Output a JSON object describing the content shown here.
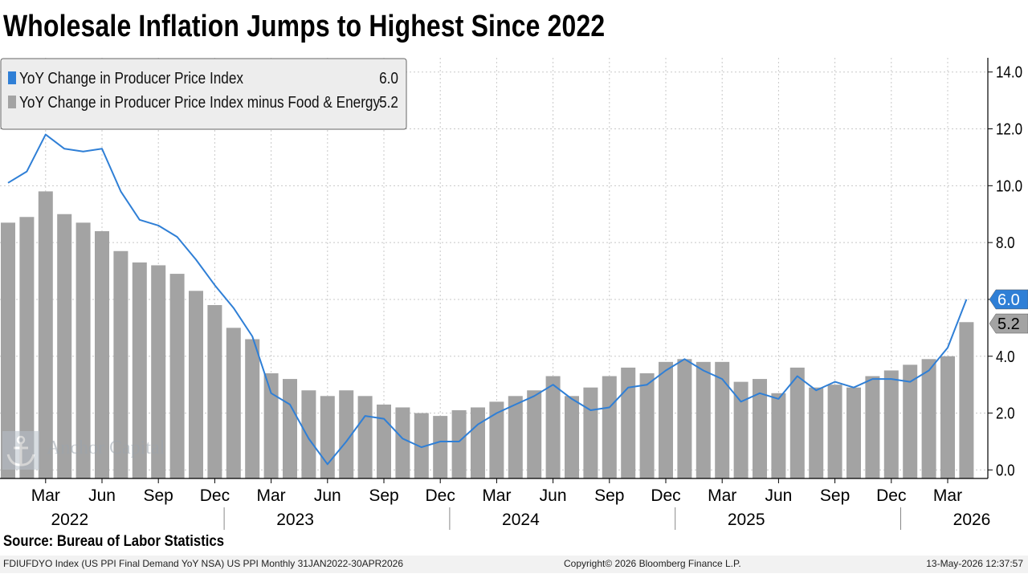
{
  "title": "Wholesale Inflation Jumps to Highest Since 2022",
  "source": "Source: Bureau of Labor Statistics",
  "footer": {
    "left": "FDIUFDYO Index (US PPI Final Demand YoY NSA) US PPI Monthly 31JAN2022-30APR2026",
    "middle": "Copyright© 2026 Bloomberg Finance L.P.",
    "right": "13-May-2026 12:37:57"
  },
  "watermark": "Anchor Capital",
  "colors": {
    "line": "#2f7fd6",
    "bar": "#a3a3a3",
    "grid": "#c8c8c8"
  },
  "chart_data": {
    "type": "bar",
    "legend_position": "top-left",
    "legend": [
      {
        "label": "YoY Change in Producer Price Index",
        "value": "6.0"
      },
      {
        "label": "YoY Change in Producer Price Index minus Food & Energy",
        "value": "5.2"
      }
    ],
    "y_axis": {
      "side": "right",
      "ylim": [
        -0.3,
        14.5
      ],
      "ticks": [
        "0.0",
        "2.0",
        "4.0",
        "6.0",
        "8.0",
        "10.0",
        "12.0",
        "14.0"
      ]
    },
    "x_ticks": [
      {
        "month": "Mar",
        "year": "2022"
      },
      {
        "month": "Jun",
        "year": ""
      },
      {
        "month": "Sep",
        "year": ""
      },
      {
        "month": "Dec",
        "year": ""
      },
      {
        "month": "Mar",
        "year": "2023"
      },
      {
        "month": "Jun",
        "year": ""
      },
      {
        "month": "Sep",
        "year": ""
      },
      {
        "month": "Dec",
        "year": ""
      },
      {
        "month": "Mar",
        "year": "2024"
      },
      {
        "month": "Jun",
        "year": ""
      },
      {
        "month": "Sep",
        "year": ""
      },
      {
        "month": "Dec",
        "year": ""
      },
      {
        "month": "Mar",
        "year": "2025"
      },
      {
        "month": "Jun",
        "year": ""
      },
      {
        "month": "Sep",
        "year": ""
      },
      {
        "month": "Dec",
        "year": ""
      },
      {
        "month": "Mar",
        "year": "2026"
      }
    ],
    "x_start": "2022-01",
    "x_end": "2026-04",
    "series": [
      {
        "name": "YoY Change in Producer Price Index",
        "type": "line",
        "last_label": "6.0",
        "values": [
          10.1,
          10.5,
          11.8,
          11.3,
          11.2,
          11.3,
          9.8,
          8.8,
          8.6,
          8.2,
          7.4,
          6.5,
          5.7,
          4.7,
          2.7,
          2.3,
          1.1,
          0.2,
          1.0,
          1.9,
          1.8,
          1.1,
          0.8,
          1.0,
          1.0,
          1.6,
          2.0,
          2.3,
          2.6,
          3.0,
          2.5,
          2.1,
          2.2,
          2.9,
          3.0,
          3.5,
          3.9,
          3.5,
          3.2,
          2.4,
          2.7,
          2.5,
          3.3,
          2.8,
          3.1,
          2.9,
          3.2,
          3.2,
          3.1,
          3.5,
          4.3,
          6.0
        ]
      },
      {
        "name": "YoY Change in Producer Price Index minus Food & Energy",
        "type": "bar",
        "last_label": "5.2",
        "values": [
          8.7,
          8.9,
          9.8,
          9.0,
          8.7,
          8.4,
          7.7,
          7.3,
          7.2,
          6.9,
          6.3,
          5.8,
          5.0,
          4.6,
          3.4,
          3.2,
          2.8,
          2.6,
          2.8,
          2.6,
          2.3,
          2.2,
          2.0,
          1.9,
          2.1,
          2.2,
          2.4,
          2.6,
          2.8,
          3.3,
          2.6,
          2.9,
          3.3,
          3.6,
          3.4,
          3.8,
          3.9,
          3.8,
          3.8,
          3.1,
          3.2,
          2.7,
          3.6,
          2.9,
          3.0,
          2.9,
          3.3,
          3.5,
          3.7,
          3.9,
          4.0,
          5.2
        ]
      }
    ]
  }
}
